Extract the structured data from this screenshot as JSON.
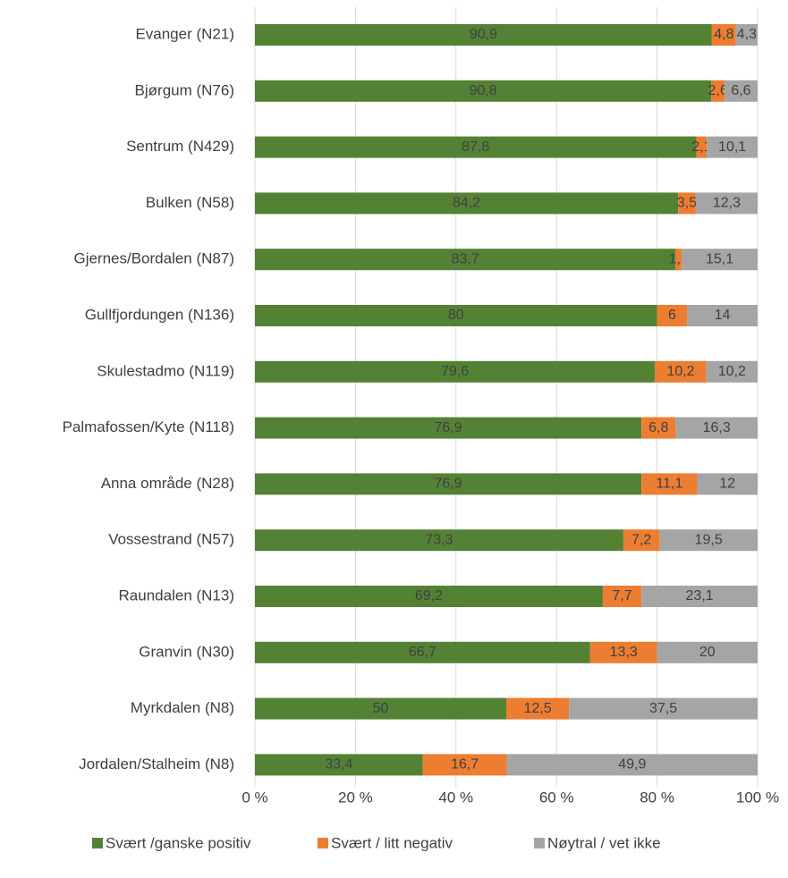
{
  "chart_data": {
    "type": "stacked_bar_horizontal",
    "categories": [
      "Evanger (N21)",
      "Bjørgum (N76)",
      "Sentrum (N429)",
      "Bulken (N58)",
      "Gjernes/Bordalen (N87)",
      "Gullfjordungen (N136)",
      "Skulestadmo (N119)",
      "Palmafossen/Kyte (N118)",
      "Anna område (N28)",
      "Vossestrand (N57)",
      "Raundalen (N13)",
      "Granvin (N30)",
      "Myrkdalen (N8)",
      "Jordalen/Stalheim (N8)"
    ],
    "series": [
      {
        "name": "Svært /ganske positiv",
        "color": "#548235",
        "values": [
          90.9,
          90.8,
          87.8,
          84.2,
          83.7,
          80,
          79.6,
          76.9,
          76.9,
          73.3,
          69.2,
          66.7,
          50,
          33.4
        ],
        "value_labels": [
          "90,9",
          "90,8",
          "87,8",
          "84,2",
          "83,7",
          "80",
          "79,6",
          "76,9",
          "76,9",
          "73,3",
          "69,2",
          "66,7",
          "50",
          "33,4"
        ]
      },
      {
        "name": "Svært / litt negativ",
        "color": "#ed7d31",
        "values": [
          4.8,
          2.6,
          2.1,
          3.5,
          1.2,
          6,
          10.2,
          6.8,
          11.1,
          7.2,
          7.7,
          13.3,
          12.5,
          16.7
        ],
        "value_labels": [
          "4,8",
          "2,6",
          "2,1",
          "3,5",
          "1,2",
          "6",
          "10,2",
          "6,8",
          "11,1",
          "7,2",
          "7,7",
          "13,3",
          "12,5",
          "16,7"
        ]
      },
      {
        "name": "Nøytral / vet ikke",
        "color": "#a5a5a5",
        "values": [
          4.3,
          6.6,
          10.1,
          12.3,
          15.1,
          14,
          10.2,
          16.3,
          12,
          19.5,
          23.1,
          20,
          37.5,
          49.9
        ],
        "value_labels": [
          "4,3",
          "6,6",
          "10,1",
          "12,3",
          "15,1",
          "14",
          "10,2",
          "16,3",
          "12",
          "19,5",
          "23,1",
          "20",
          "37,5",
          "49,9"
        ]
      }
    ],
    "xlim": [
      0,
      100
    ],
    "xticks": [
      {
        "value": 0,
        "label": "0 %"
      },
      {
        "value": 20,
        "label": "20 %"
      },
      {
        "value": 40,
        "label": "40 %"
      },
      {
        "value": 60,
        "label": "60 %"
      },
      {
        "value": 80,
        "label": "80 %"
      },
      {
        "value": 100,
        "label": "100 %"
      }
    ],
    "grid": true,
    "legend": "bottom"
  }
}
